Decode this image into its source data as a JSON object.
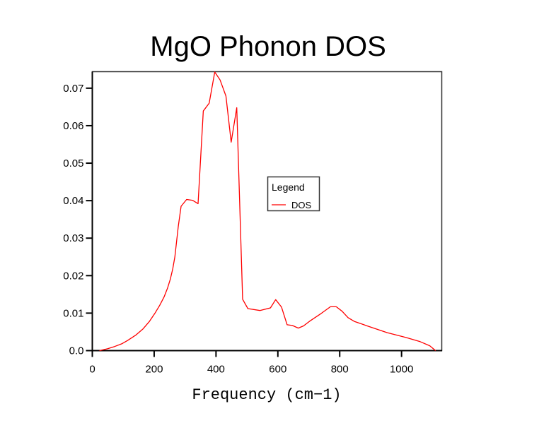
{
  "chart_data": {
    "type": "line",
    "title": "MgO Phonon DOS",
    "xlabel": "Frequency (cm−1)",
    "ylabel": "",
    "xlim": [
      0,
      1130
    ],
    "ylim": [
      0,
      0.0744
    ],
    "xticks": [
      0,
      200,
      400,
      600,
      800,
      1000
    ],
    "xtick_labels": [
      "0",
      "200",
      "400",
      "600",
      "800",
      "1000"
    ],
    "yticks": [
      0.0,
      0.01,
      0.02,
      0.03,
      0.04,
      0.05,
      0.06,
      0.07
    ],
    "ytick_labels": [
      "0.0",
      "0.01",
      "0.02",
      "0.03",
      "0.04",
      "0.05",
      "0.06",
      "0.07"
    ],
    "grid": false,
    "legend": {
      "title": "Legend",
      "placement": "center-right",
      "entries": [
        {
          "label": "DOS",
          "color": "#ff0000"
        }
      ]
    },
    "series": [
      {
        "name": "DOS",
        "color": "#ff0000",
        "x": [
          23,
          50,
          72,
          95,
          114,
          140,
          164,
          184,
          202,
          218,
          232,
          243,
          252,
          260,
          267,
          278,
          287,
          305,
          324,
          342,
          359,
          378,
          396,
          413,
          432,
          449,
          467,
          486,
          503,
          542,
          576,
          593,
          612,
          630,
          647,
          666,
          683,
          702,
          740,
          770,
          789,
          808,
          827,
          847,
          892,
          953,
          1014,
          1060,
          1091,
          1110
        ],
        "y": [
          0.0,
          0.0005,
          0.0011,
          0.0018,
          0.0027,
          0.0041,
          0.0058,
          0.0077,
          0.0099,
          0.0121,
          0.0143,
          0.0166,
          0.019,
          0.0218,
          0.025,
          0.0331,
          0.0385,
          0.0403,
          0.0401,
          0.0392,
          0.0639,
          0.066,
          0.0743,
          0.0722,
          0.0679,
          0.0556,
          0.0648,
          0.0137,
          0.0112,
          0.0107,
          0.0114,
          0.0136,
          0.0116,
          0.0069,
          0.0067,
          0.006,
          0.0066,
          0.0078,
          0.0099,
          0.0117,
          0.0117,
          0.0105,
          0.0088,
          0.0078,
          0.0065,
          0.0048,
          0.0035,
          0.0024,
          0.0013,
          0.0
        ]
      }
    ]
  }
}
